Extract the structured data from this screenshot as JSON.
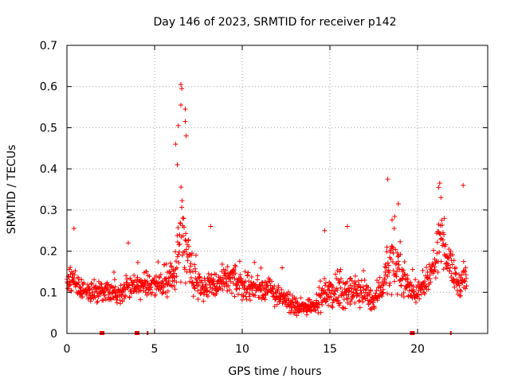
{
  "chart_data": {
    "type": "scatter",
    "title": "Day 146 of 2023, SRMTID for receiver p142",
    "xlabel": "GPS time / hours",
    "ylabel": "SRMTID / TECUs",
    "xlim": [
      0,
      24
    ],
    "ylim": [
      0,
      0.7
    ],
    "x_ticks": [
      0,
      5,
      10,
      15,
      20
    ],
    "x_tick_labels": [
      "0",
      "5",
      "10",
      "15",
      "20"
    ],
    "y_ticks": [
      0,
      0.1,
      0.2,
      0.3,
      0.4,
      0.5,
      0.6,
      0.7
    ],
    "y_tick_labels": [
      "0",
      "0.1",
      "0.2",
      "0.3",
      "0.4",
      "0.5",
      "0.6",
      "0.7"
    ],
    "grid": true,
    "marker": "plus",
    "color": "#ff0000",
    "series_envelope": {
      "name": "SRMTID",
      "x_start": 0.0,
      "x_end": 22.8,
      "x_step": 0.017,
      "anchors_hours": [
        0,
        0.3,
        0.8,
        1.5,
        2.5,
        3.5,
        4.5,
        5.5,
        6.0,
        6.3,
        6.5,
        6.8,
        7.2,
        7.8,
        8.5,
        9.5,
        10.5,
        11.5,
        12.5,
        13.2,
        14.0,
        15.0,
        16.0,
        17.0,
        17.5,
        18.0,
        18.5,
        19.0,
        19.5,
        20.0,
        20.5,
        21.0,
        21.3,
        21.6,
        22.0,
        22.3,
        22.8
      ],
      "anchors_median": [
        0.13,
        0.14,
        0.11,
        0.1,
        0.1,
        0.11,
        0.12,
        0.12,
        0.13,
        0.18,
        0.26,
        0.22,
        0.14,
        0.11,
        0.12,
        0.13,
        0.11,
        0.11,
        0.08,
        0.06,
        0.07,
        0.1,
        0.1,
        0.1,
        0.08,
        0.12,
        0.17,
        0.15,
        0.11,
        0.1,
        0.12,
        0.16,
        0.26,
        0.2,
        0.15,
        0.12,
        0.13
      ],
      "anchors_spread": [
        0.05,
        0.06,
        0.04,
        0.04,
        0.04,
        0.04,
        0.04,
        0.05,
        0.05,
        0.09,
        0.15,
        0.12,
        0.06,
        0.05,
        0.06,
        0.06,
        0.05,
        0.04,
        0.04,
        0.03,
        0.03,
        0.05,
        0.06,
        0.05,
        0.04,
        0.06,
        0.09,
        0.07,
        0.05,
        0.04,
        0.05,
        0.07,
        0.1,
        0.08,
        0.06,
        0.05,
        0.06
      ]
    },
    "peaks": [
      {
        "x": 6.5,
        "y": 0.605
      },
      {
        "x": 6.55,
        "y": 0.595
      },
      {
        "x": 6.5,
        "y": 0.555
      },
      {
        "x": 6.75,
        "y": 0.545
      },
      {
        "x": 6.75,
        "y": 0.515
      },
      {
        "x": 6.35,
        "y": 0.505
      },
      {
        "x": 6.8,
        "y": 0.48
      },
      {
        "x": 6.2,
        "y": 0.46
      },
      {
        "x": 6.3,
        "y": 0.41
      },
      {
        "x": 18.3,
        "y": 0.375
      },
      {
        "x": 21.2,
        "y": 0.355
      },
      {
        "x": 22.6,
        "y": 0.36
      },
      {
        "x": 18.9,
        "y": 0.315
      },
      {
        "x": 16.0,
        "y": 0.26
      },
      {
        "x": 14.7,
        "y": 0.25
      },
      {
        "x": 0.4,
        "y": 0.255
      },
      {
        "x": 8.2,
        "y": 0.26
      },
      {
        "x": 3.5,
        "y": 0.22
      }
    ],
    "data_gaps_hours": [
      2.0,
      4.0,
      19.7
    ],
    "minor_markers_hours": [
      4.6,
      21.9
    ]
  }
}
